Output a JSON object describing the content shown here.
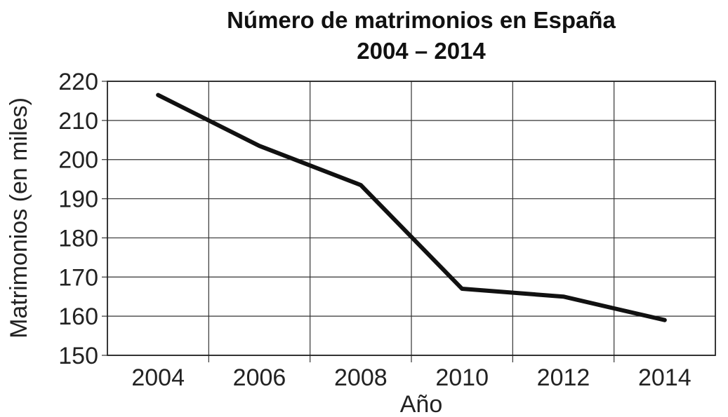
{
  "chart_data": {
    "type": "line",
    "title": "Número de matrimonios en España",
    "subtitle": "2004 – 2014",
    "xlabel": "Año",
    "ylabel": "Matrimonios (en miles)",
    "ylim": [
      150,
      220
    ],
    "yticks": [
      150,
      160,
      170,
      180,
      190,
      200,
      210,
      220
    ],
    "xticks": [
      "2004",
      "2006",
      "2008",
      "2010",
      "2012",
      "2014"
    ],
    "grid": true,
    "series": [
      {
        "x": [
          2004,
          2006,
          2008,
          2010,
          2012,
          2014
        ],
        "y": [
          216.5,
          203.5,
          193.5,
          167,
          165,
          159
        ]
      }
    ]
  }
}
